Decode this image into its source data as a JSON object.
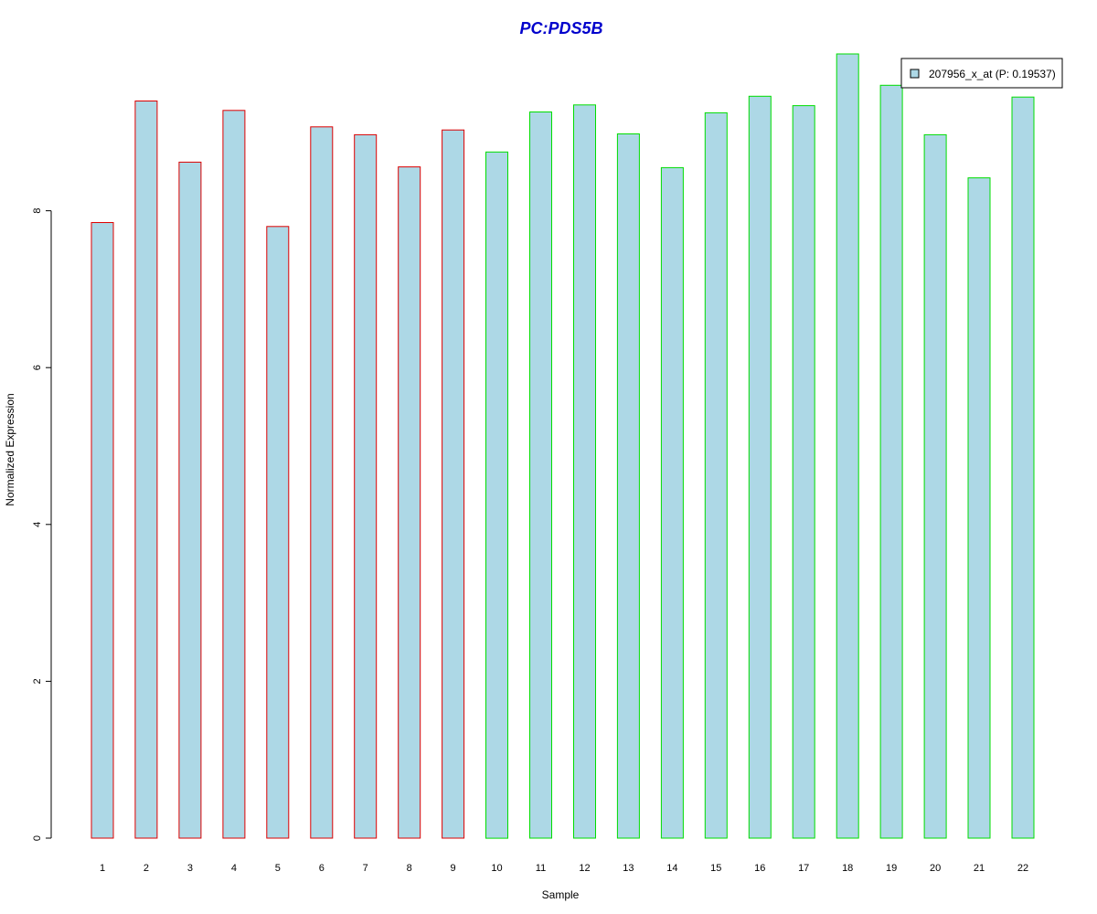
{
  "chart_data": {
    "type": "bar",
    "title": "PC:PDS5B",
    "title_color": "#0000cc",
    "xlabel": "Sample",
    "ylabel": "Normalized Expression",
    "ylim": [
      0,
      10
    ],
    "y_ticks": [
      0,
      2,
      4,
      6,
      8
    ],
    "grid": false,
    "legend_position": "top-right",
    "categories": [
      "1",
      "2",
      "3",
      "4",
      "5",
      "6",
      "7",
      "8",
      "9",
      "10",
      "11",
      "12",
      "13",
      "14",
      "15",
      "16",
      "17",
      "18",
      "19",
      "20",
      "21",
      "22"
    ],
    "series": [
      {
        "name": "207956_x_at (P: 0.19537)",
        "fill_color": "#add8e6",
        "values": [
          7.85,
          9.4,
          8.62,
          9.28,
          7.8,
          9.07,
          8.97,
          8.56,
          9.03,
          8.75,
          9.26,
          9.35,
          8.98,
          8.55,
          9.25,
          9.46,
          9.34,
          10.0,
          9.6,
          8.97,
          8.42,
          9.45
        ]
      }
    ],
    "groups": [
      {
        "border_color": "#dd0000",
        "samples": [
          "1",
          "2",
          "3",
          "4",
          "5",
          "6",
          "7",
          "8",
          "9"
        ]
      },
      {
        "border_color": "#00dd00",
        "samples": [
          "10",
          "11",
          "12",
          "13",
          "14",
          "15",
          "16",
          "17",
          "18",
          "19",
          "20",
          "21",
          "22"
        ]
      }
    ]
  }
}
